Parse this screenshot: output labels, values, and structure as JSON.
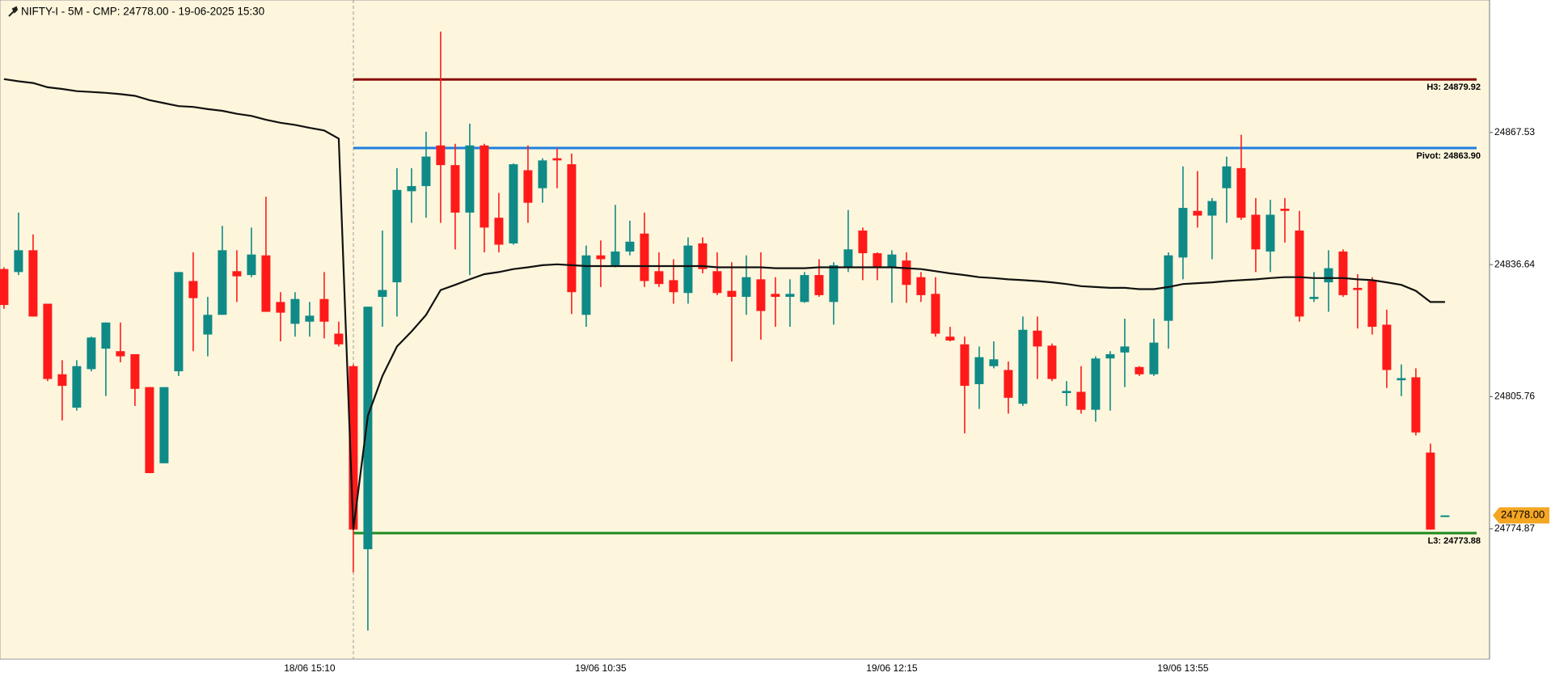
{
  "chart_data": {
    "type": "candlestick",
    "title": "NIFTY-I - 5M - CMP: 24778.00 - 19-06-2025 15:30",
    "categories": [
      null,
      null,
      null,
      null,
      null,
      null,
      null,
      null,
      null,
      null,
      null,
      null,
      null,
      null,
      null,
      null,
      null,
      null,
      null,
      null,
      null,
      "18/06 15:10",
      null,
      null,
      null,
      null,
      null,
      null,
      null,
      null,
      null,
      null,
      null,
      null,
      null,
      null,
      null,
      null,
      null,
      null,
      null,
      "19/06 10:35",
      null,
      null,
      null,
      null,
      null,
      null,
      null,
      null,
      null,
      null,
      null,
      null,
      null,
      null,
      null,
      null,
      null,
      null,
      null,
      "19/06 12:15",
      null,
      null,
      null,
      null,
      null,
      null,
      null,
      null,
      null,
      null,
      null,
      null,
      null,
      null,
      null,
      null,
      null,
      null,
      null,
      "19/06 13:55",
      null,
      null,
      null,
      null,
      null,
      null,
      null,
      null,
      null,
      null,
      null,
      null,
      null,
      null,
      null,
      null,
      null,
      null
    ],
    "open": [
      24835.6,
      24834.9,
      24840.0,
      24827.5,
      24811.0,
      24803.2,
      24812.2,
      24817.0,
      24816.4,
      24815.7,
      24808.0,
      24790.2,
      24811.7,
      24832.8,
      24820.3,
      24824.9,
      24835.1,
      24834.2,
      24838.8,
      24827.9,
      24822.8,
      24823.3,
      24828.6,
      24820.5,
      24812.9,
      24770.1,
      24829.1,
      24832.5,
      24853.8,
      24855.0,
      24864.5,
      24859.9,
      24848.8,
      24864.5,
      24847.6,
      24841.6,
      24858.7,
      24854.5,
      24861.5,
      24860.1,
      24824.9,
      24838.8,
      24836.5,
      24839.7,
      24843.9,
      24835.1,
      24833.0,
      24830.0,
      24841.6,
      24835.1,
      24830.5,
      24829.1,
      24833.2,
      24829.8,
      24829.1,
      24827.9,
      24834.2,
      24827.9,
      24836.0,
      24844.6,
      24839.3,
      24836.0,
      24837.6,
      24833.7,
      24829.8,
      24819.8,
      24818.0,
      24808.7,
      24812.9,
      24812.0,
      24804.1,
      24821.2,
      24817.7,
      24806.6,
      24806.9,
      24802.7,
      24814.7,
      24816.1,
      24812.7,
      24811.0,
      24823.5,
      24838.3,
      24849.2,
      24848.1,
      24854.5,
      24859.2,
      24848.3,
      24839.7,
      24849.7,
      24844.6,
      24828.6,
      24832.5,
      24839.7,
      24831.2,
      24832.8,
      24822.6,
      24809.6,
      24810.3,
      24792.7,
      24778
    ],
    "high": [
      24836.0,
      24848.8,
      24843.7,
      24827.5,
      24814.3,
      24814.3,
      24819.8,
      24823.1,
      24823.1,
      24815.7,
      24808.0,
      24808.0,
      24834.9,
      24839.5,
      24829.1,
      24845.7,
      24840.0,
      24845.3,
      24852.5,
      24830.2,
      24830.2,
      24827.9,
      24834.9,
      24823.3,
      24813.3,
      24826.8,
      24844.6,
      24859.2,
      24859.2,
      24867.7,
      24891.1,
      24864.9,
      24869.6,
      24864.9,
      24853.4,
      24860.3,
      24864.5,
      24861.5,
      24863.8,
      24862.6,
      24841.1,
      24842.3,
      24850.6,
      24846.9,
      24848.8,
      24839.5,
      24837.9,
      24843.0,
      24843.0,
      24839.5,
      24837.2,
      24838.8,
      24839.5,
      24833.7,
      24833.2,
      24834.9,
      24837.9,
      24837.2,
      24849.4,
      24845.3,
      24839.5,
      24840.0,
      24839.5,
      24834.9,
      24833.7,
      24822.1,
      24819.8,
      24817.5,
      24818.7,
      24814.0,
      24824.5,
      24824.5,
      24818.2,
      24809.4,
      24812.9,
      24815.2,
      24816.4,
      24824.0,
      24812.9,
      24824.0,
      24839.5,
      24859.6,
      24858.5,
      24852.2,
      24861.9,
      24867.0,
      24852.2,
      24851.8,
      24852.2,
      24849.2,
      24834.9,
      24840.0,
      24840.2,
      24834.4,
      24833.7,
      24826.1,
      24813.3,
      24812.4,
      24794.8,
      24778
    ],
    "low": [
      24826.3,
      24834.2,
      24824.5,
      24809.4,
      24800.2,
      24802.5,
      24811.7,
      24805.9,
      24813.8,
      24803.6,
      24787.9,
      24790.2,
      24810.6,
      24816.4,
      24815.2,
      24824.9,
      24827.9,
      24833.7,
      24825.6,
      24818.7,
      24819.8,
      24819.8,
      24819.4,
      24817.5,
      24764.7,
      24751.1,
      24822.1,
      24824.5,
      24846.4,
      24847.6,
      24846.4,
      24840.2,
      24834.2,
      24839.5,
      24839.5,
      24841.3,
      24846.4,
      24851.1,
      24854.5,
      24825.1,
      24822.1,
      24831.4,
      24836.0,
      24838.8,
      24831.4,
      24831.4,
      24827.5,
      24827.5,
      24834.6,
      24829.5,
      24814.0,
      24824.9,
      24819.1,
      24822.1,
      24822.1,
      24827.7,
      24829.1,
      24822.6,
      24834.9,
      24833.0,
      24833.0,
      24827.7,
      24827.7,
      24827.9,
      24819.8,
      24818.7,
      24797.2,
      24802.9,
      24812.4,
      24801.8,
      24803.6,
      24809.9,
      24809.4,
      24803.6,
      24801.8,
      24799.9,
      24802.5,
      24808.0,
      24810.6,
      24810.6,
      24817.0,
      24833.2,
      24845.3,
      24837.9,
      24846.4,
      24847.1,
      24834.9,
      24834.9,
      24841.8,
      24823.3,
      24827.9,
      24825.6,
      24829.1,
      24821.7,
      24820.3,
      24807.8,
      24805.9,
      24796.7,
      24774.7,
      24778
    ],
    "close": [
      24827.2,
      24840.0,
      24824.5,
      24809.9,
      24808.3,
      24812.9,
      24819.6,
      24823.1,
      24815.2,
      24807.6,
      24787.9,
      24808.0,
      24834.9,
      24828.8,
      24824.9,
      24840.0,
      24833.9,
      24839.0,
      24825.6,
      24825.4,
      24828.6,
      24824.7,
      24823.3,
      24818.0,
      24774.7,
      24826.8,
      24830.7,
      24854.1,
      24855.0,
      24861.9,
      24859.9,
      24848.8,
      24864.5,
      24845.3,
      24841.3,
      24860.1,
      24851.1,
      24861.0,
      24861.0,
      24830.2,
      24838.8,
      24837.9,
      24839.7,
      24842.0,
      24832.8,
      24832.1,
      24830.2,
      24841.1,
      24835.6,
      24830.0,
      24829.1,
      24833.7,
      24825.8,
      24829.1,
      24829.8,
      24834.2,
      24829.5,
      24836.5,
      24840.2,
      24839.3,
      24836.0,
      24839.0,
      24831.9,
      24829.5,
      24820.5,
      24818.9,
      24808.3,
      24815.0,
      24814.5,
      24805.5,
      24821.4,
      24817.5,
      24809.9,
      24807.1,
      24802.7,
      24814.7,
      24815.7,
      24817.5,
      24811.0,
      24818.4,
      24838.8,
      24849.9,
      24848.1,
      24851.5,
      24859.6,
      24847.6,
      24840.2,
      24848.3,
      24849.2,
      24824.5,
      24829.1,
      24835.8,
      24829.5,
      24830.7,
      24822.1,
      24812.0,
      24810.1,
      24797.4,
      24774.7,
      24778
    ],
    "up_color": "#0f8a87",
    "down_color": "#ff1a1a",
    "line": {
      "color": "#111111",
      "values": [
        24880.0,
        24879.5,
        24879.1,
        24878.1,
        24877.7,
        24877.2,
        24877.0,
        24876.8,
        24876.5,
        24876.1,
        24875.1,
        24874.4,
        24873.7,
        24873.5,
        24873.0,
        24872.6,
        24871.9,
        24871.4,
        24870.5,
        24869.8,
        24869.3,
        24868.6,
        24868.0,
        24866.1,
        24774.7,
        24801.3,
        24810.6,
        24817.5,
        24821.0,
        24824.9,
        24830.7,
        24831.9,
        24833.2,
        24834.4,
        24834.9,
        24835.6,
        24836.0,
        24836.5,
        24836.7,
        24836.5,
        24836.3,
        24836.3,
        24836.3,
        24836.3,
        24836.3,
        24836.3,
        24836.3,
        24836.3,
        24836.3,
        24836.0,
        24836.0,
        24836.0,
        24836.0,
        24835.8,
        24835.8,
        24835.8,
        24836.0,
        24836.0,
        24836.0,
        24836.0,
        24836.0,
        24836.0,
        24835.8,
        24835.6,
        24835.1,
        24834.6,
        24834.2,
        24833.7,
        24833.5,
        24833.2,
        24833.0,
        24832.8,
        24832.5,
        24832.1,
        24831.6,
        24831.4,
        24831.2,
        24831.2,
        24830.9,
        24830.9,
        24831.4,
        24832.1,
        24832.3,
        24832.5,
        24832.8,
        24833.0,
        24833.2,
        24833.5,
        24833.7,
        24833.7,
        24833.5,
        24833.5,
        24833.5,
        24833.2,
        24833.0,
        24832.5,
        24831.9,
        24830.5,
        24827.9,
        24827.9
      ]
    },
    "levels": [
      {
        "label": "H3: 24879.92",
        "value": 24879.92,
        "color": "#8b0a0a"
      },
      {
        "label": "Pivot: 24863.90",
        "value": 24863.9,
        "color": "#1f7fe0"
      },
      {
        "label": "L3: 24773.88",
        "value": 24773.88,
        "color": "#1f8a1f"
      }
    ],
    "price_tag": {
      "value": 24778,
      "label": "24778.00",
      "color": "#f5a623"
    },
    "ylim": [
      24744.4,
      24898.5
    ],
    "yticks": [
      24867.53,
      24836.64,
      24805.76,
      24774.87
    ]
  }
}
